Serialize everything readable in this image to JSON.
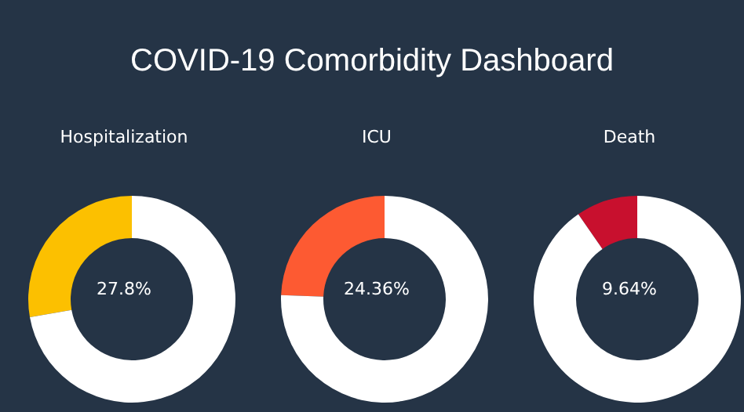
{
  "chart_data": [
    {
      "type": "other",
      "title": "COVID-19 Comorbidity Dashboard"
    },
    {
      "type": "donut",
      "title": "Hospitalization",
      "categories": [
        null,
        null
      ],
      "values": [
        27.8,
        72.2
      ],
      "colors": [
        "#fcc000",
        "#ffffff"
      ],
      "annotations": [
        "27.8%"
      ]
    },
    {
      "type": "donut",
      "title": "ICU",
      "categories": [
        null,
        null
      ],
      "values": [
        24.36,
        75.64
      ],
      "colors": [
        "#fd5a32",
        "#ffffff"
      ],
      "annotations": [
        "24.36%"
      ]
    },
    {
      "type": "donut",
      "title": "Death",
      "categories": [
        null,
        null
      ],
      "values": [
        9.64,
        90.36
      ],
      "colors": [
        "#c8102e",
        "#ffffff"
      ],
      "annotations": [
        "9.64%"
      ]
    }
  ]
}
